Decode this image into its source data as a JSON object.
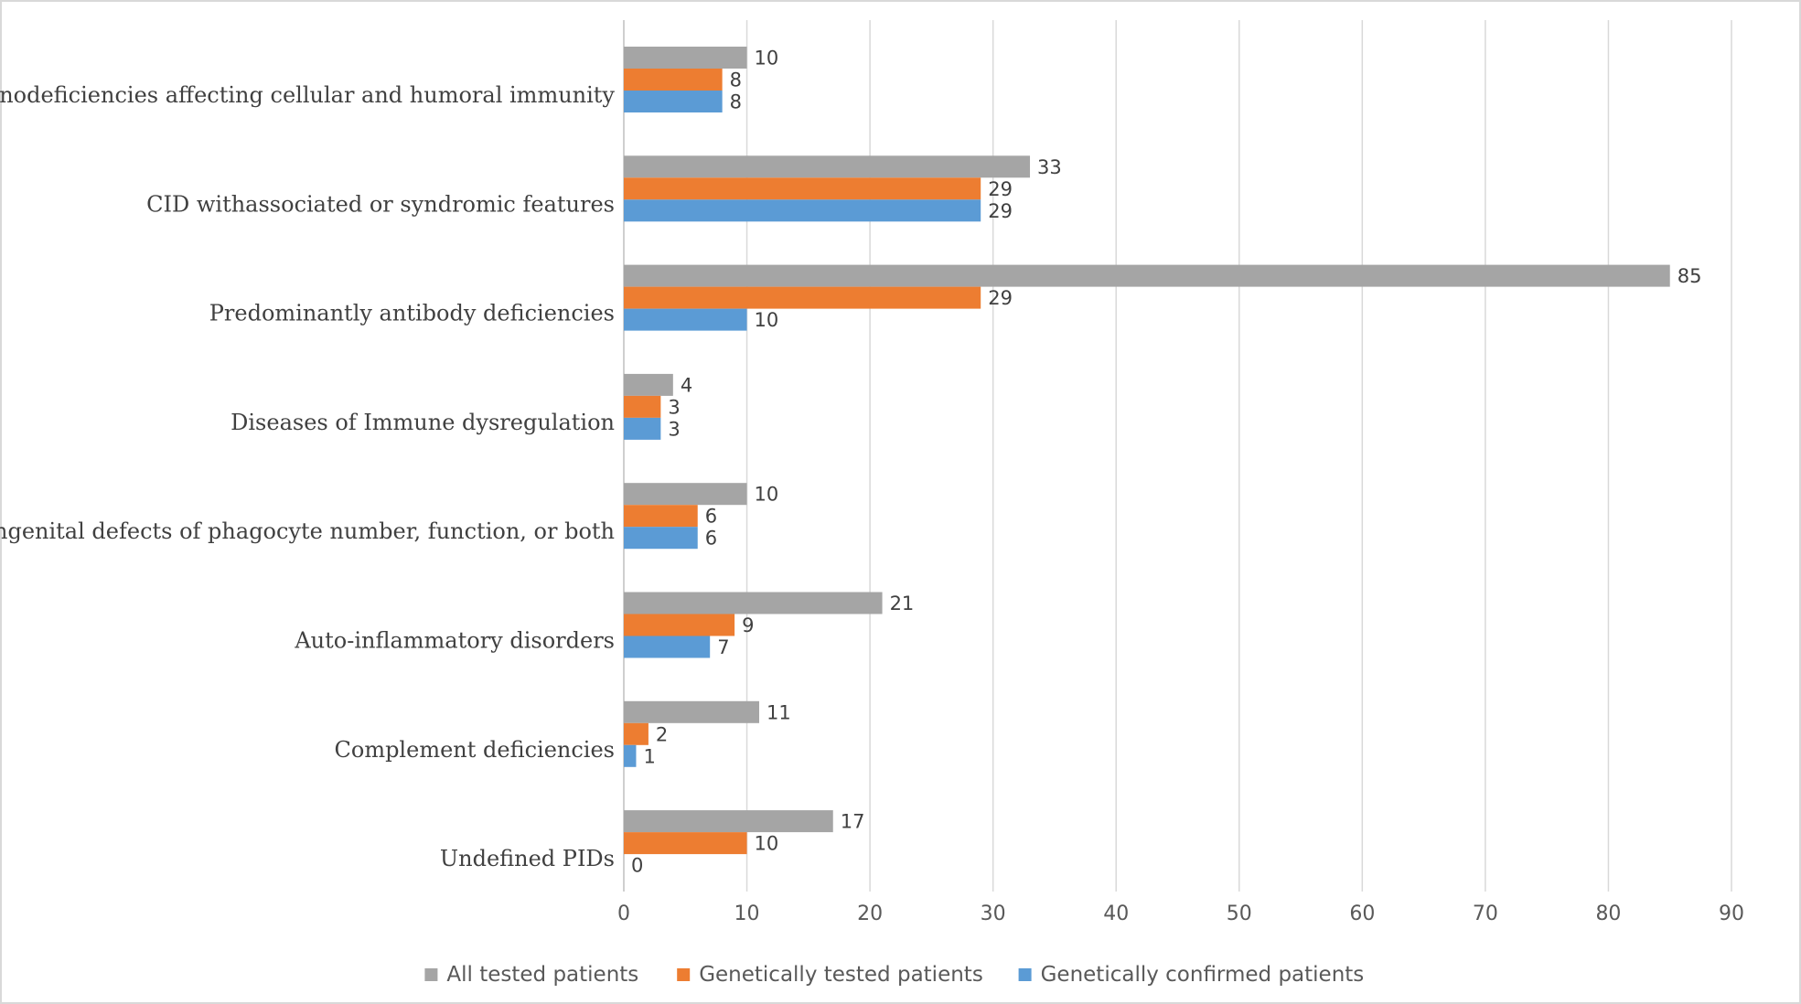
{
  "chart_data": {
    "type": "bar",
    "orientation": "horizontal",
    "title": "",
    "xlabel": "",
    "ylabel": "",
    "xlim": [
      0,
      90
    ],
    "x_ticks": [
      0,
      10,
      20,
      30,
      40,
      50,
      60,
      70,
      80,
      90
    ],
    "grid": "vertical",
    "legend_position": "bottom",
    "categories": [
      "Immunodeficiencies affecting cellular and humoral immunity",
      "CID withassociated or syndromic features",
      "Predominantly antibody deficiencies",
      "Diseases of Immune dysregulation",
      "Congenital defects of phagocyte number, function, or both",
      "Auto-inflammatory disorders",
      "Complement deficiencies",
      "Undefined PIDs"
    ],
    "series": [
      {
        "name": "All tested patients",
        "color": "#a5a5a5",
        "values": [
          10,
          33,
          85,
          4,
          10,
          21,
          11,
          17
        ]
      },
      {
        "name": "Genetically tested patients",
        "color": "#ed7d31",
        "values": [
          8,
          29,
          29,
          3,
          6,
          9,
          2,
          10
        ]
      },
      {
        "name": "Genetically confirmed patients",
        "color": "#5b9bd5",
        "values": [
          8,
          29,
          10,
          3,
          6,
          7,
          1,
          0
        ]
      }
    ]
  }
}
